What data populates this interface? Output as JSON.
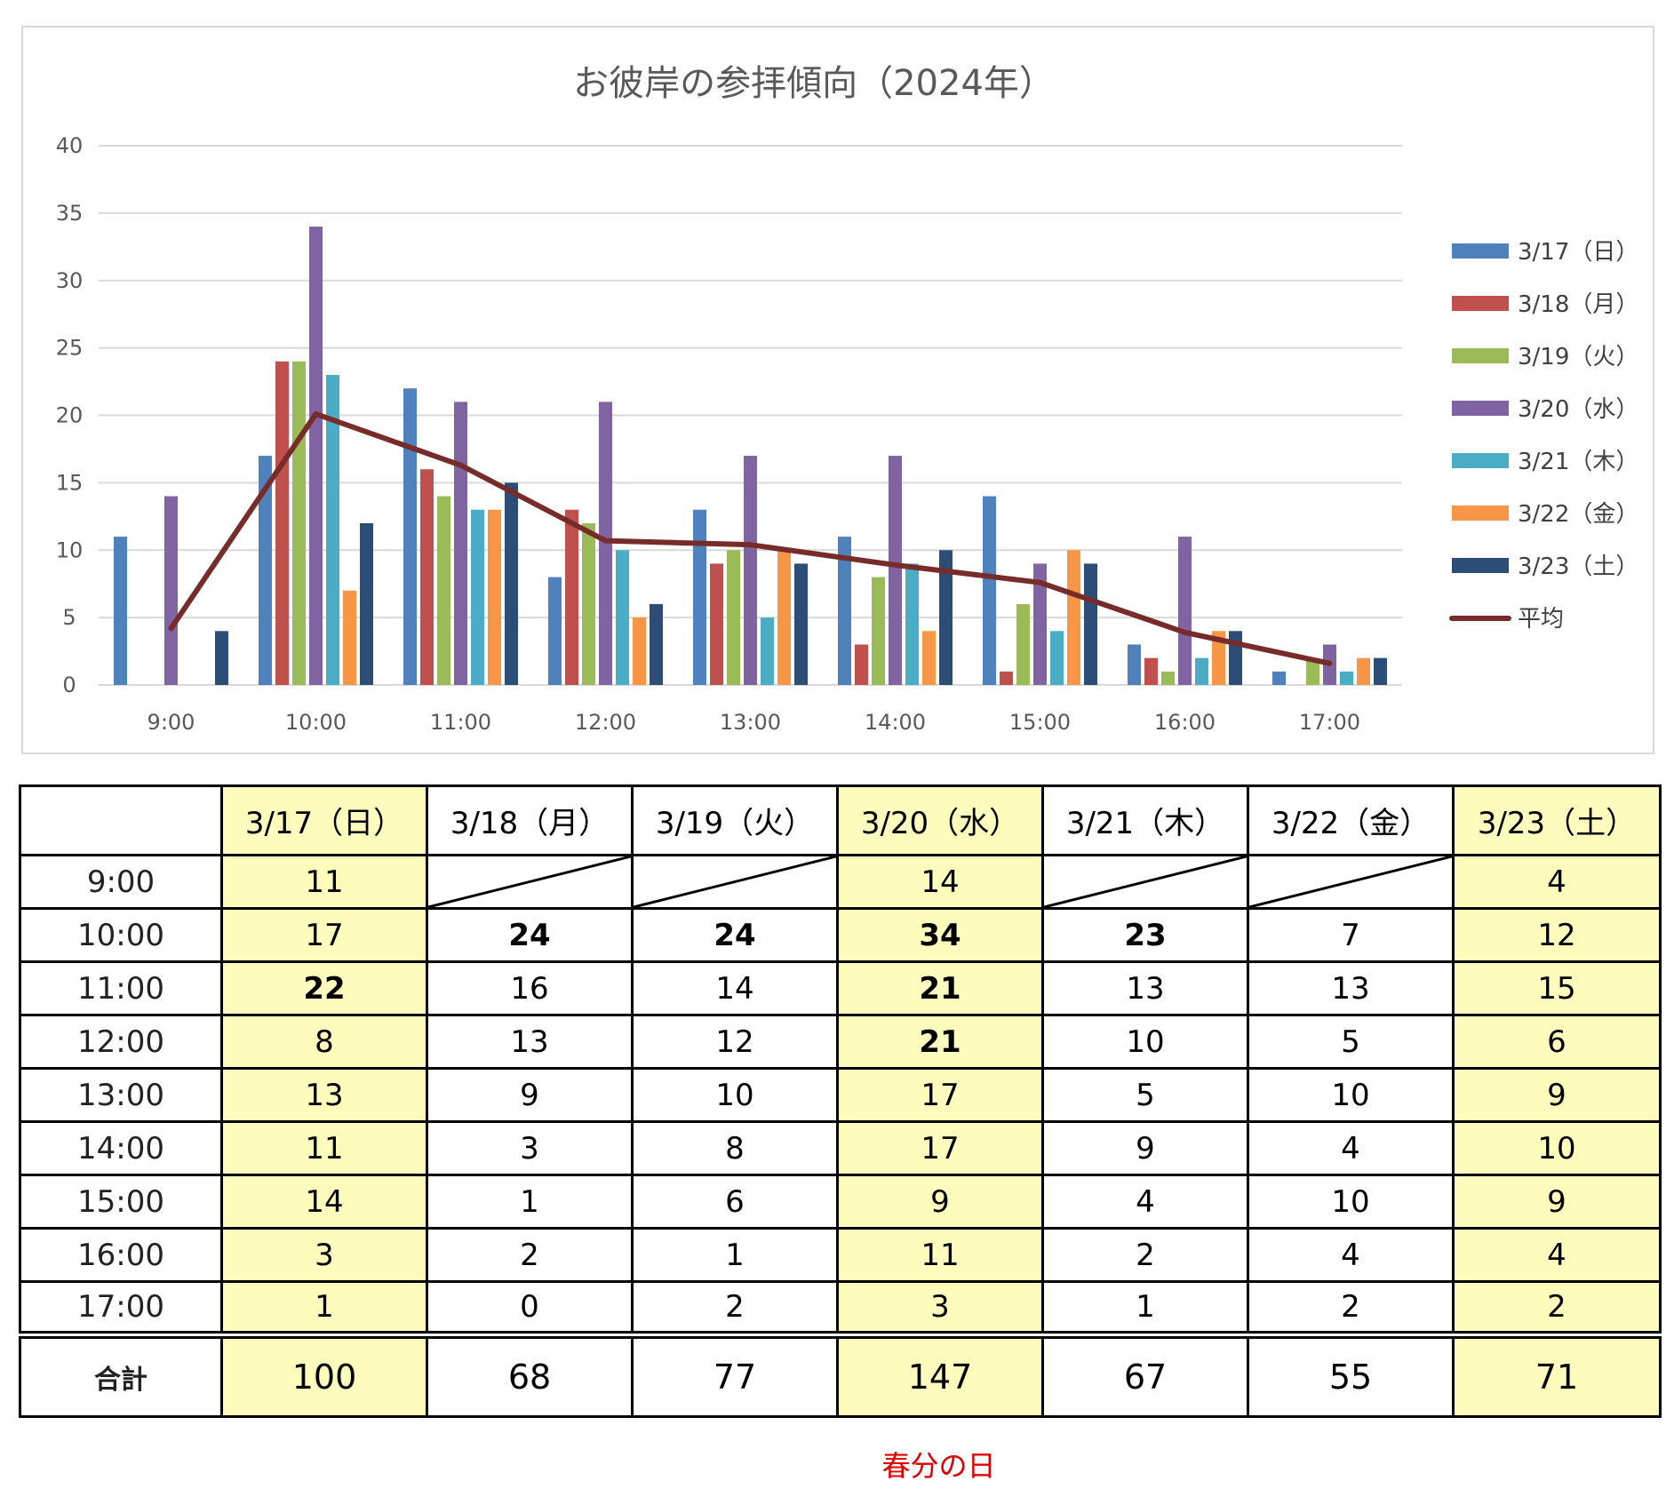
{
  "chart_data": {
    "type": "bar",
    "title": "お彼岸の参拝傾向（2024年）",
    "categories": [
      "9:00",
      "10:00",
      "11:00",
      "12:00",
      "13:00",
      "14:00",
      "15:00",
      "16:00",
      "17:00"
    ],
    "ylim": [
      0,
      40
    ],
    "yticks": [
      0,
      5,
      10,
      15,
      20,
      25,
      30,
      35,
      40
    ],
    "grid": true,
    "legend_position": "right",
    "series": [
      {
        "name": "3/17（日）",
        "color": "#4f81bd",
        "values": [
          11,
          17,
          22,
          8,
          13,
          11,
          14,
          3,
          1
        ]
      },
      {
        "name": "3/18（月）",
        "color": "#c0504d",
        "values": [
          null,
          24,
          16,
          13,
          9,
          3,
          1,
          2,
          0
        ]
      },
      {
        "name": "3/19（火）",
        "color": "#9bbb59",
        "values": [
          null,
          24,
          14,
          12,
          10,
          8,
          6,
          1,
          2
        ]
      },
      {
        "name": "3/20（水）",
        "color": "#8064a2",
        "values": [
          14,
          34,
          21,
          21,
          17,
          17,
          9,
          11,
          3
        ]
      },
      {
        "name": "3/21（木）",
        "color": "#4bacc6",
        "values": [
          null,
          23,
          13,
          10,
          5,
          9,
          4,
          2,
          1
        ]
      },
      {
        "name": "3/22（金）",
        "color": "#f79646",
        "values": [
          null,
          7,
          13,
          5,
          10,
          4,
          10,
          4,
          2
        ]
      },
      {
        "name": "3/23（土）",
        "color": "#2c4d75",
        "values": [
          4,
          12,
          15,
          6,
          9,
          10,
          9,
          4,
          2
        ]
      }
    ],
    "average": {
      "name": "平均",
      "color": "#772c2a",
      "values": [
        4.2,
        20.1,
        16.3,
        10.7,
        10.4,
        8.9,
        7.6,
        3.9,
        1.6
      ]
    }
  },
  "table": {
    "headers": [
      "",
      "3/17（日）",
      "3/18（月）",
      "3/19（火）",
      "3/20（水）",
      "3/21（木）",
      "3/22（金）",
      "3/23（土）"
    ],
    "highlight_color": "#fdfcbd",
    "rows": [
      {
        "label": "9:00",
        "cells": [
          "11",
          "",
          "",
          "14",
          "",
          "",
          "4"
        ]
      },
      {
        "label": "10:00",
        "cells": [
          "17",
          "24",
          "24",
          "34",
          "23",
          "7",
          "12"
        ]
      },
      {
        "label": "11:00",
        "cells": [
          "22",
          "16",
          "14",
          "21",
          "13",
          "13",
          "15"
        ]
      },
      {
        "label": "12:00",
        "cells": [
          "8",
          "13",
          "12",
          "21",
          "10",
          "5",
          "6"
        ]
      },
      {
        "label": "13:00",
        "cells": [
          "13",
          "9",
          "10",
          "17",
          "5",
          "10",
          "9"
        ]
      },
      {
        "label": "14:00",
        "cells": [
          "11",
          "3",
          "8",
          "17",
          "9",
          "4",
          "10"
        ]
      },
      {
        "label": "15:00",
        "cells": [
          "14",
          "1",
          "6",
          "9",
          "4",
          "10",
          "9"
        ]
      },
      {
        "label": "16:00",
        "cells": [
          "3",
          "2",
          "1",
          "11",
          "2",
          "4",
          "4"
        ]
      },
      {
        "label": "17:00",
        "cells": [
          "1",
          "0",
          "2",
          "3",
          "1",
          "2",
          "2"
        ]
      }
    ],
    "total": {
      "label": "合計",
      "cells": [
        "100",
        "68",
        "77",
        "147",
        "67",
        "55",
        "71"
      ]
    },
    "footnote": "春分の日"
  }
}
